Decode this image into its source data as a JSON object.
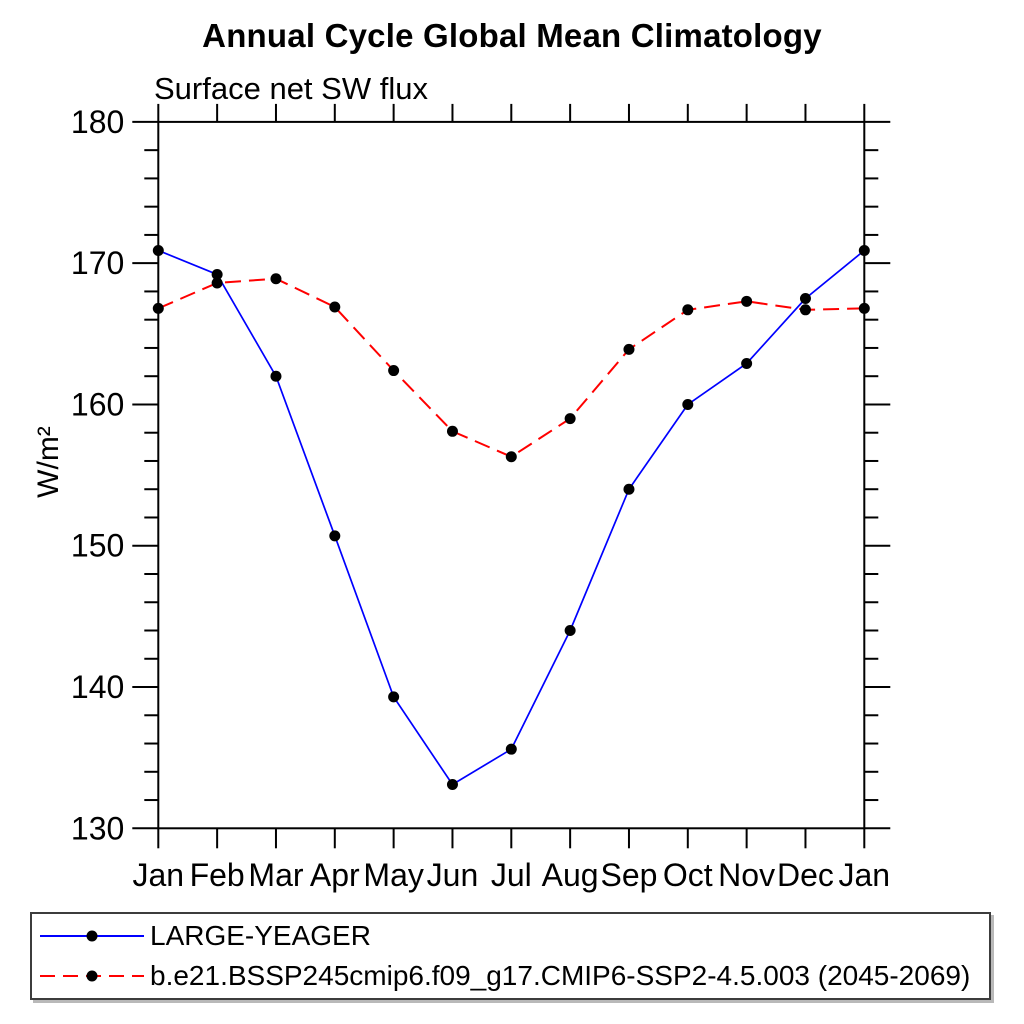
{
  "title": "Annual Cycle Global Mean Climatology",
  "subtitle": "Surface net SW flux",
  "ylabel": "W/m²",
  "chart_data": {
    "type": "line",
    "title": "Annual Cycle Global Mean Climatology",
    "subtitle": "Surface net SW flux",
    "xlabel": "",
    "ylabel": "W/m²",
    "categories": [
      "Jan",
      "Feb",
      "Mar",
      "Apr",
      "May",
      "Jun",
      "Jul",
      "Aug",
      "Sep",
      "Oct",
      "Nov",
      "Dec",
      "Jan"
    ],
    "series": [
      {
        "name": "LARGE-YEAGER",
        "color": "#0000ff",
        "line_style": "solid",
        "marker": "filled-circle",
        "marker_color": "#000000",
        "values": [
          170.9,
          169.2,
          162.0,
          150.7,
          139.3,
          133.1,
          135.6,
          144.0,
          154.0,
          160.0,
          162.9,
          167.5,
          170.9
        ]
      },
      {
        "name": "b.e21.BSSP245cmip6.f09_g17.CMIP6-SSP2-4.5.003 (2045-2069)",
        "color": "#ff0000",
        "line_style": "dashed",
        "marker": "filled-circle",
        "marker_color": "#000000",
        "values": [
          166.8,
          168.6,
          168.9,
          166.9,
          162.4,
          158.1,
          156.3,
          159.0,
          163.9,
          166.7,
          167.3,
          166.7,
          166.8
        ]
      }
    ],
    "ylim": [
      130,
      180
    ],
    "yticks_major": [
      130,
      140,
      150,
      160,
      170,
      180
    ],
    "ytick_minor_step": 2,
    "grid": false,
    "frame": "box-with-outward-ticks",
    "legend_position": "bottom"
  }
}
